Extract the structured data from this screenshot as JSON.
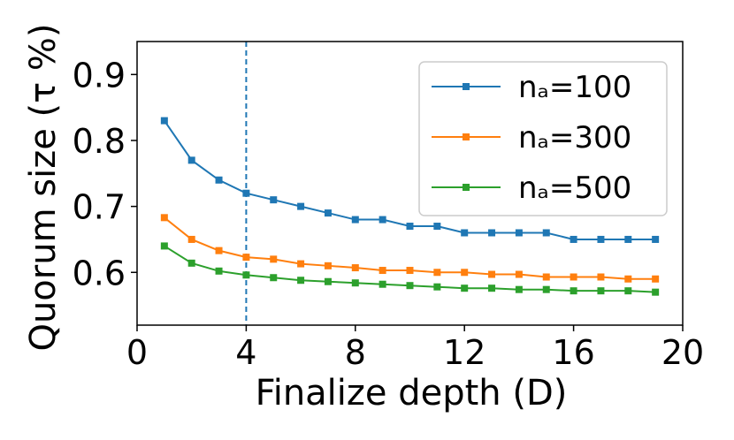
{
  "chart_data": {
    "type": "line",
    "xlabel": "Finalize depth (D)",
    "ylabel": "Quorum size  (τ %)",
    "xlim": [
      0,
      20
    ],
    "ylim": [
      0.52,
      0.95
    ],
    "xticks": [
      0,
      4,
      8,
      12,
      16,
      20
    ],
    "yticks": [
      0.6,
      0.7,
      0.8,
      0.9
    ],
    "xtick_labels": [
      "0",
      "4",
      "8",
      "12",
      "16",
      "20"
    ],
    "ytick_labels": [
      "0.6",
      "0.7",
      "0.8",
      "0.9"
    ],
    "grid": false,
    "legend_position": "top-right",
    "vline": {
      "x": 4,
      "color": "#1f77b4",
      "style": "dashed"
    },
    "x": [
      1,
      2,
      3,
      4,
      5,
      6,
      7,
      8,
      9,
      10,
      11,
      12,
      13,
      14,
      15,
      16,
      17,
      18,
      19
    ],
    "series": [
      {
        "name": "nₐ=100",
        "color": "#1f77b4",
        "marker": "square",
        "values": [
          0.83,
          0.77,
          0.74,
          0.72,
          0.71,
          0.7,
          0.69,
          0.68,
          0.68,
          0.67,
          0.67,
          0.66,
          0.66,
          0.66,
          0.66,
          0.65,
          0.65,
          0.65,
          0.65
        ]
      },
      {
        "name": "nₐ=300",
        "color": "#ff7f0e",
        "marker": "square",
        "values": [
          0.683,
          0.65,
          0.633,
          0.623,
          0.62,
          0.613,
          0.61,
          0.607,
          0.603,
          0.603,
          0.6,
          0.6,
          0.597,
          0.597,
          0.593,
          0.593,
          0.593,
          0.59,
          0.59
        ]
      },
      {
        "name": "nₐ=500",
        "color": "#2ca02c",
        "marker": "square",
        "values": [
          0.64,
          0.614,
          0.602,
          0.596,
          0.592,
          0.588,
          0.586,
          0.584,
          0.582,
          0.58,
          0.578,
          0.576,
          0.576,
          0.574,
          0.574,
          0.572,
          0.572,
          0.572,
          0.57
        ]
      }
    ]
  }
}
